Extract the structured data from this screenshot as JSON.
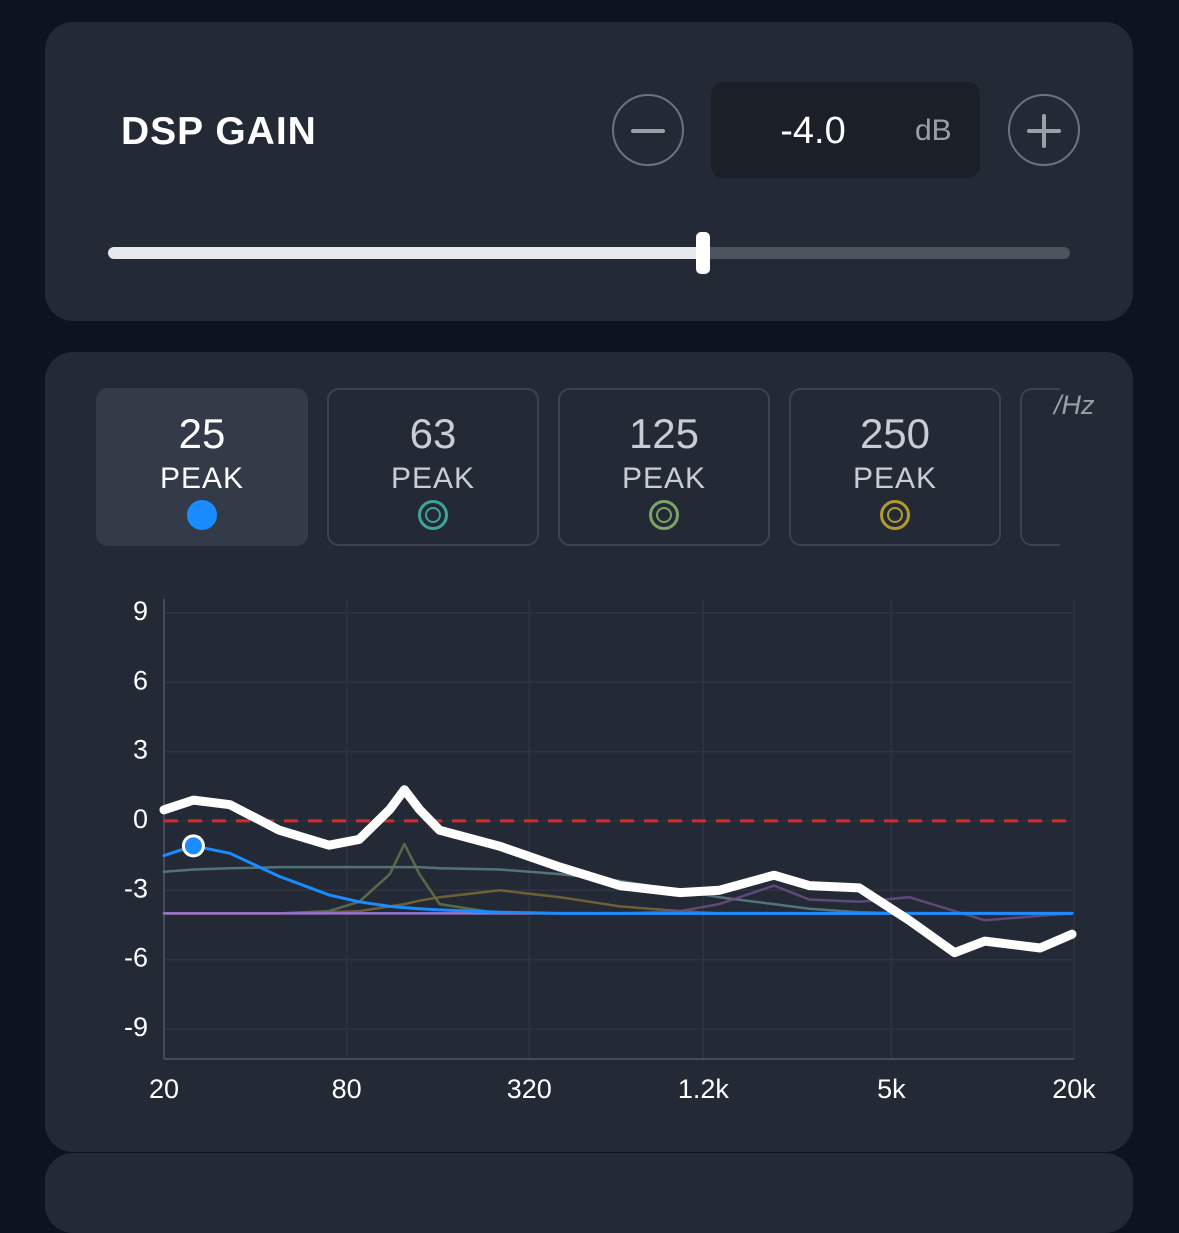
{
  "gain": {
    "label": "DSP GAIN",
    "value": "-4.0",
    "unit": "dB"
  },
  "bands": [
    {
      "freq": 25,
      "type": "PEAK",
      "color": "#1a8cff"
    },
    {
      "freq": 63,
      "type": "PEAK",
      "color": "#3fa39a"
    },
    {
      "freq": 125,
      "type": "PEAK",
      "color": "#7fa364"
    },
    {
      "freq": 250,
      "type": "PEAK",
      "color": "#b39a2e"
    }
  ],
  "band_unit": "/Hz",
  "chart_data": {
    "type": "line",
    "x": [
      20,
      25,
      33,
      48,
      70,
      88,
      111,
      124,
      139,
      162,
      256,
      404,
      637,
      1006,
      1353,
      2052,
      2680,
      3917,
      5723,
      8078,
      10170,
      15460,
      19700
    ],
    "series": [
      {
        "color": "#5c7f86",
        "values": [
          -2.2,
          -2.1,
          -2.05,
          -2.0,
          -2.0,
          -2.0,
          -2.0,
          -2.0,
          -2.0,
          -2.05,
          -2.1,
          -2.3,
          -2.6,
          -3.0,
          -3.3,
          -3.6,
          -3.8,
          -3.95,
          -4.0,
          -4.0,
          -4.0,
          -4.0,
          -4.0
        ]
      },
      {
        "color": "#62764f",
        "values": [
          -4.0,
          -4.0,
          -4.0,
          -4.0,
          -3.9,
          -3.5,
          -2.3,
          -1.0,
          -2.3,
          -3.6,
          -4.0,
          -4.0,
          -4.0,
          -4.0,
          -4.0,
          -4.0,
          -4.0,
          -4.0,
          -4.0,
          -4.0,
          -4.0,
          -4.0,
          -4.0
        ]
      },
      {
        "color": "#7a6a35",
        "values": [
          -4.0,
          -4.0,
          -4.0,
          -4.0,
          -3.95,
          -3.9,
          -3.7,
          -3.6,
          -3.45,
          -3.3,
          -3.0,
          -3.3,
          -3.7,
          -3.9,
          -4.0,
          -4.0,
          -4.0,
          -4.0,
          -4.0,
          -4.0,
          -4.0,
          -4.0,
          -4.0
        ]
      },
      {
        "color": "#6b4d85",
        "values": [
          -4.0,
          -4.0,
          -4.0,
          -4.0,
          -4.0,
          -4.0,
          -4.0,
          -4.0,
          -4.0,
          -4.0,
          -4.0,
          -4.0,
          -4.0,
          -3.9,
          -3.6,
          -2.8,
          -3.4,
          -3.5,
          -3.3,
          -3.9,
          -4.3,
          -4.1,
          -4.0
        ]
      },
      {
        "color": "#a07ad8",
        "values": [
          -4.0,
          -4.0,
          -4.0,
          -4.0,
          -4.0,
          -4.0,
          -4.0,
          -4.0,
          -4.0,
          -4.0,
          -4.0,
          -4.0,
          -4.0,
          -4.0,
          -4.0,
          -4.0,
          -4.0,
          -4.0,
          -4.0,
          -4.0,
          -4.0,
          -4.0,
          -4.0
        ]
      },
      {
        "color": "#1a8cff",
        "values": [
          -1.5,
          -1.08,
          -1.4,
          -2.4,
          -3.2,
          -3.5,
          -3.7,
          -3.75,
          -3.8,
          -3.85,
          -3.95,
          -4.0,
          -4.0,
          -4.0,
          -4.0,
          -4.0,
          -4.0,
          -4.0,
          -4.0,
          -4.0,
          -4.0,
          -4.0,
          -4.0
        ]
      },
      {
        "color": "#ffffff",
        "values": [
          0.48,
          0.9,
          0.7,
          -0.4,
          -1.05,
          -0.8,
          0.5,
          1.35,
          0.5,
          -0.4,
          -1.1,
          -2.0,
          -2.8,
          -3.1,
          -3.0,
          -2.35,
          -2.8,
          -2.9,
          -4.3,
          -5.7,
          -5.2,
          -5.5,
          -4.9
        ]
      }
    ],
    "point": {
      "x": 25,
      "y": -1.08,
      "color": "#1a8cff"
    },
    "reference_line": {
      "value": 0,
      "color": "#d42a2a"
    },
    "log_x": true,
    "grid": true,
    "xlim": [
      20,
      20000
    ],
    "ylim": [
      -10.3,
      9.6
    ],
    "xticks": [
      20,
      80,
      320,
      {
        "value": 1200,
        "label": "1.2k"
      },
      {
        "value": 5000,
        "label": "5k"
      },
      {
        "value": 20000,
        "label": "20k"
      }
    ],
    "yticks": [
      9,
      6,
      3,
      0,
      -3,
      -6,
      -9
    ]
  }
}
